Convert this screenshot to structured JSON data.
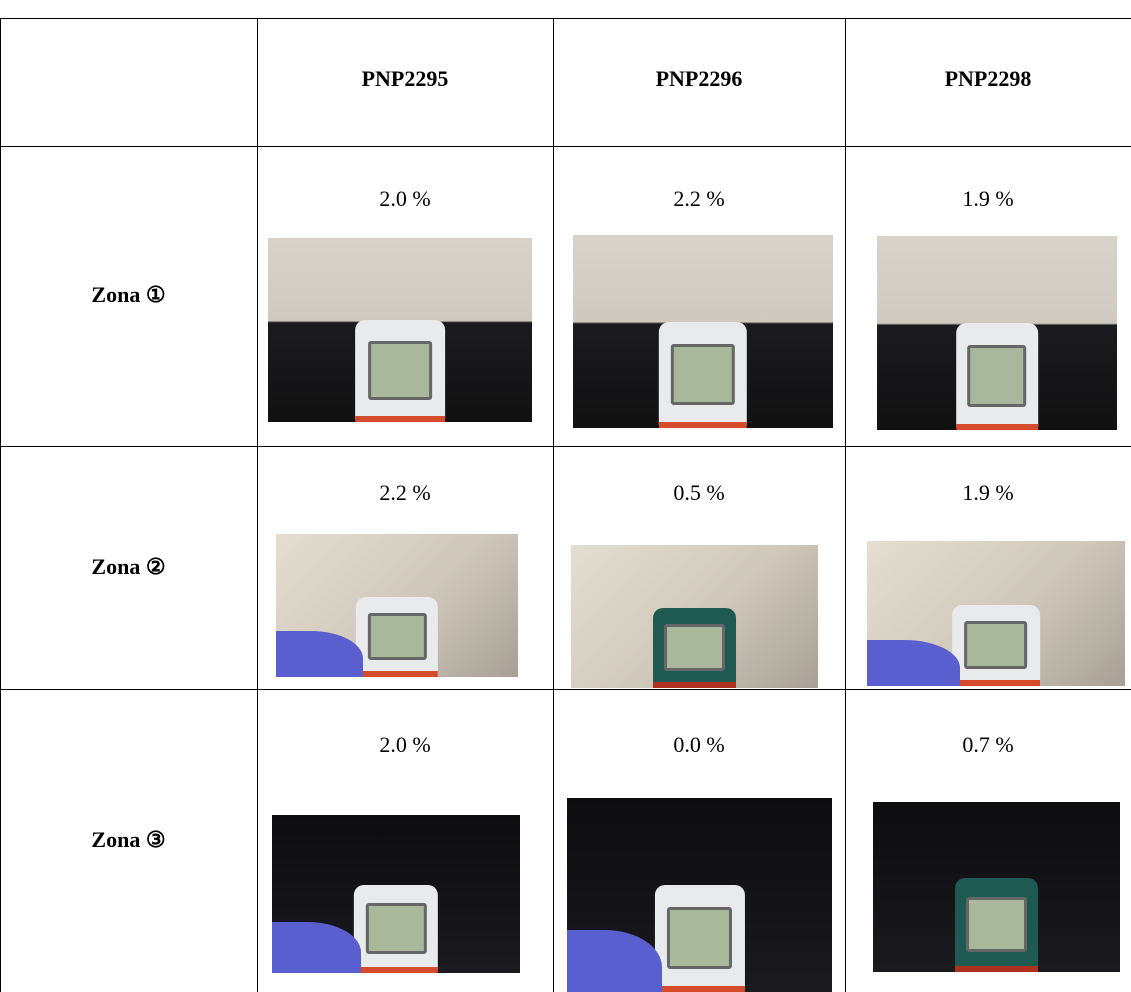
{
  "table": {
    "columns": [
      "PNP2295",
      "PNP2296",
      "PNP2298"
    ],
    "rows": [
      {
        "label": "Zona ①",
        "values": [
          "2.0 %",
          "2.2 %",
          "1.9 %"
        ]
      },
      {
        "label": "Zona ②",
        "values": [
          "2.2 %",
          "0.5 %",
          "1.9 %"
        ]
      },
      {
        "label": "Zona ③",
        "values": [
          "2.0 %",
          "0.0 %",
          "0.7 %"
        ]
      }
    ]
  }
}
